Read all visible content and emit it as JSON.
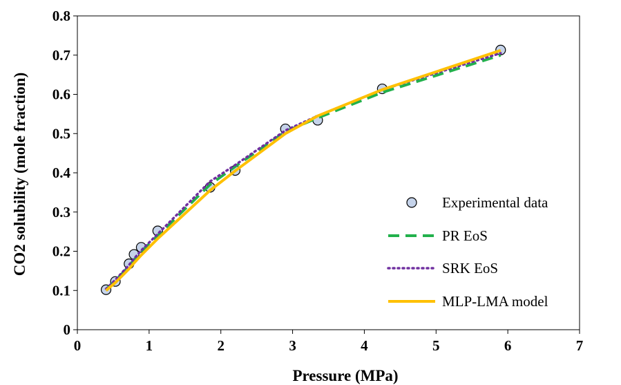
{
  "chart_data": {
    "type": "scatter",
    "xlabel": "Pressure (MPa)",
    "ylabel": "CO2 solubility (mole fraction)",
    "xlim": [
      0,
      7
    ],
    "ylim": [
      0,
      0.8
    ],
    "x_ticks": [
      "0",
      "1",
      "2",
      "3",
      "4",
      "5",
      "6",
      "7"
    ],
    "y_ticks": [
      "0",
      "0.1",
      "0.2",
      "0.3",
      "0.4",
      "0.5",
      "0.6",
      "0.7",
      "0.8"
    ],
    "grid": false,
    "legend_position": "bottom-right",
    "series": [
      {
        "name": "Experimental data",
        "kind": "marker",
        "color": "#c5d3ea",
        "points": [
          [
            0.4,
            0.102
          ],
          [
            0.53,
            0.123
          ],
          [
            0.72,
            0.168
          ],
          [
            0.79,
            0.192
          ],
          [
            0.89,
            0.21
          ],
          [
            1.12,
            0.252
          ],
          [
            1.85,
            0.363
          ],
          [
            2.2,
            0.406
          ],
          [
            2.9,
            0.512
          ],
          [
            3.35,
            0.534
          ],
          [
            4.25,
            0.614
          ],
          [
            5.9,
            0.713
          ]
        ]
      },
      {
        "name": "PR EoS",
        "kind": "dashed",
        "color": "#22b14c",
        "points": [
          [
            0.4,
            0.103
          ],
          [
            0.53,
            0.125
          ],
          [
            0.72,
            0.162
          ],
          [
            0.79,
            0.178
          ],
          [
            0.89,
            0.199
          ],
          [
            1.12,
            0.24
          ],
          [
            1.85,
            0.37
          ],
          [
            2.2,
            0.416
          ],
          [
            2.9,
            0.505
          ],
          [
            3.35,
            0.54
          ],
          [
            4.25,
            0.605
          ],
          [
            5.9,
            0.7
          ]
        ]
      },
      {
        "name": "SRK EoS",
        "kind": "dotted",
        "color": "#7030a0",
        "points": [
          [
            0.4,
            0.104
          ],
          [
            0.53,
            0.127
          ],
          [
            0.72,
            0.165
          ],
          [
            0.79,
            0.181
          ],
          [
            0.89,
            0.202
          ],
          [
            1.12,
            0.244
          ],
          [
            1.85,
            0.378
          ],
          [
            2.2,
            0.42
          ],
          [
            2.9,
            0.508
          ],
          [
            3.35,
            0.545
          ],
          [
            4.25,
            0.612
          ],
          [
            5.9,
            0.705
          ]
        ]
      },
      {
        "name": "MLP-LMA model",
        "kind": "solid",
        "color": "#ffc000",
        "points": [
          [
            0.4,
            0.1
          ],
          [
            0.53,
            0.12
          ],
          [
            0.72,
            0.155
          ],
          [
            0.79,
            0.17
          ],
          [
            0.89,
            0.19
          ],
          [
            1.12,
            0.232
          ],
          [
            1.85,
            0.355
          ],
          [
            2.2,
            0.405
          ],
          [
            2.9,
            0.5
          ],
          [
            3.35,
            0.545
          ],
          [
            4.25,
            0.612
          ],
          [
            5.9,
            0.712
          ]
        ]
      }
    ]
  }
}
